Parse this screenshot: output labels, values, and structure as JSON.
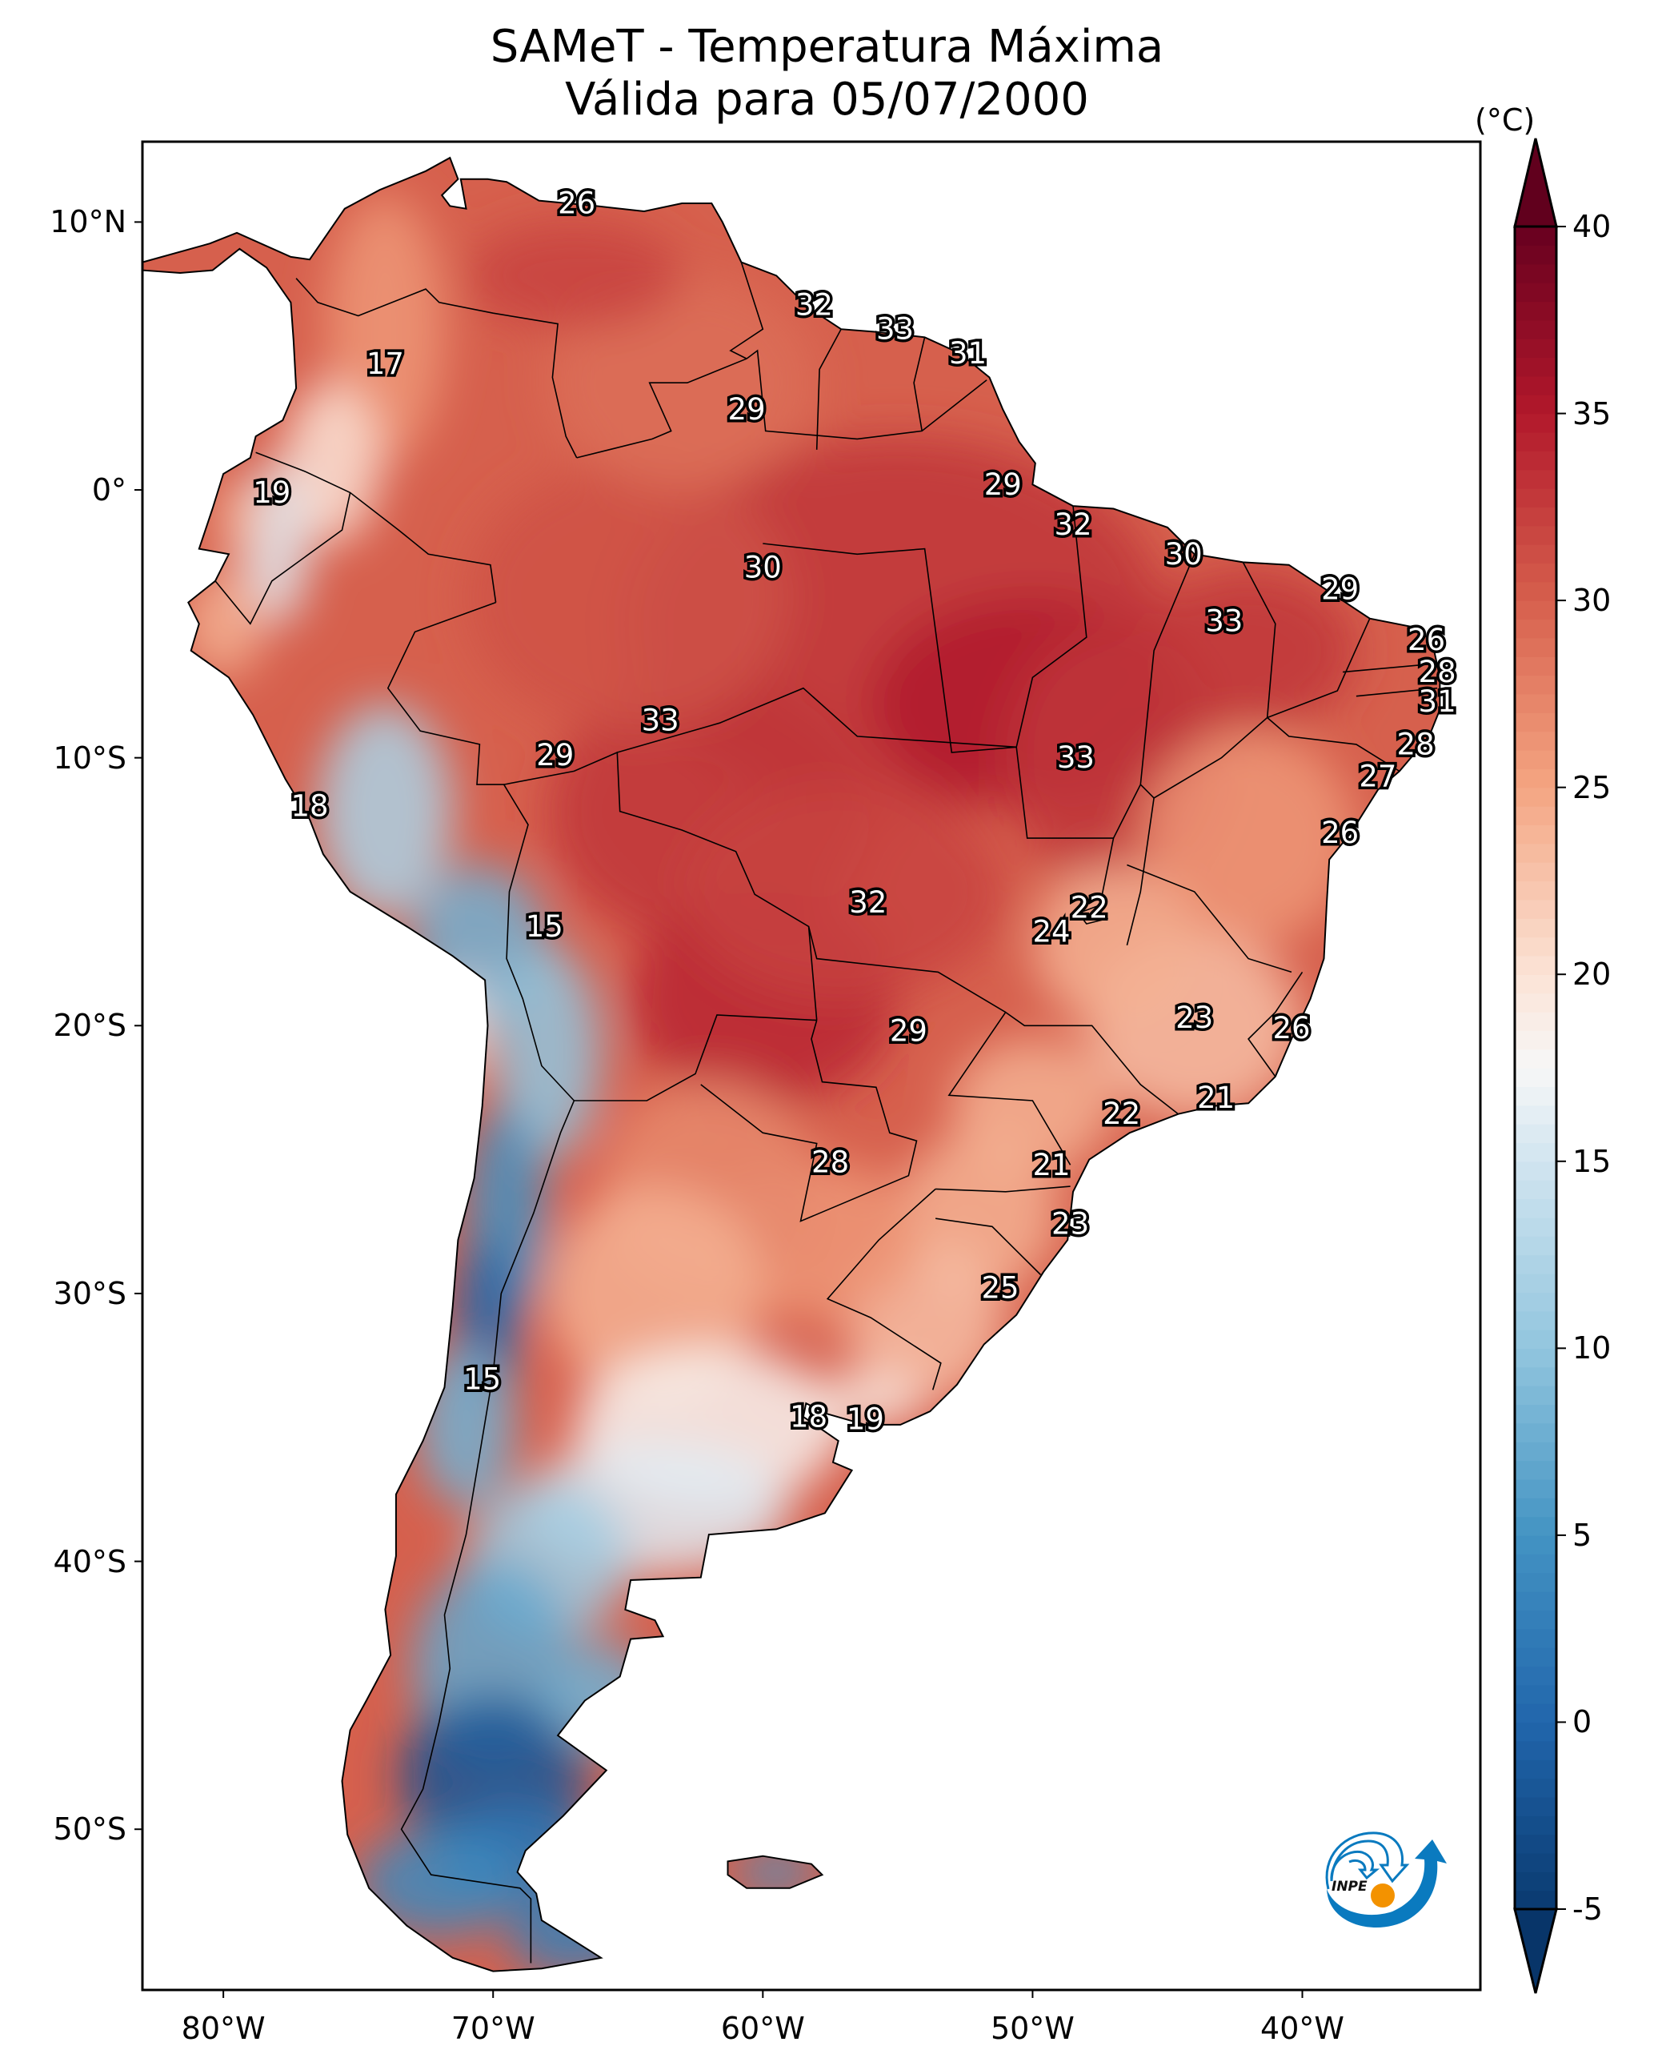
{
  "chart_data": {
    "type": "heatmap",
    "title": "SAMeT - Temperatura Máxima",
    "subtitle": "Válida para 05/07/2000",
    "variable": "Temperatura Máxima",
    "units": "(°C)",
    "region": "South America",
    "xlim": [
      -83,
      -33.4
    ],
    "ylim": [
      -56,
      13
    ],
    "x_ticks": [
      {
        "value": -80,
        "label": "80°W"
      },
      {
        "value": -70,
        "label": "70°W"
      },
      {
        "value": -60,
        "label": "60°W"
      },
      {
        "value": -50,
        "label": "50°W"
      },
      {
        "value": -40,
        "label": "40°W"
      }
    ],
    "y_ticks": [
      {
        "value": 10,
        "label": "10°N"
      },
      {
        "value": 0,
        "label": "0°"
      },
      {
        "value": -10,
        "label": "10°S"
      },
      {
        "value": -20,
        "label": "20°S"
      },
      {
        "value": -30,
        "label": "30°S"
      },
      {
        "value": -40,
        "label": "40°S"
      },
      {
        "value": -50,
        "label": "50°S"
      }
    ],
    "colorbar": {
      "label": "(°C)",
      "range": [
        -5,
        40
      ],
      "extend": "both",
      "colormap": "RdBu_r",
      "ticks": [
        {
          "value": 40,
          "label": "40"
        },
        {
          "value": 35,
          "label": "35"
        },
        {
          "value": 30,
          "label": "30"
        },
        {
          "value": 25,
          "label": "25"
        },
        {
          "value": 20,
          "label": "20"
        },
        {
          "value": 15,
          "label": "15"
        },
        {
          "value": 10,
          "label": "10"
        },
        {
          "value": 5,
          "label": "5"
        },
        {
          "value": 0,
          "label": "0"
        },
        {
          "value": -5,
          "label": "-5"
        }
      ],
      "stops": [
        {
          "value": -7,
          "color": "#053061"
        },
        {
          "value": -5,
          "color": "#0a3a70"
        },
        {
          "value": 0,
          "color": "#2166ac"
        },
        {
          "value": 5,
          "color": "#4393c3"
        },
        {
          "value": 10,
          "color": "#92c5de"
        },
        {
          "value": 15,
          "color": "#d1e5f0"
        },
        {
          "value": 17.5,
          "color": "#f7f7f7"
        },
        {
          "value": 20,
          "color": "#fbe3d6"
        },
        {
          "value": 25,
          "color": "#f4a582"
        },
        {
          "value": 30,
          "color": "#d6604d"
        },
        {
          "value": 35,
          "color": "#b2182b"
        },
        {
          "value": 40,
          "color": "#67001f"
        },
        {
          "value": 42,
          "color": "#5a001a"
        }
      ]
    },
    "station_labels": [
      {
        "lon": -66.9,
        "lat": 10.7,
        "value": 26
      },
      {
        "lon": -74.0,
        "lat": 4.7,
        "value": 17
      },
      {
        "lon": -78.2,
        "lat": -0.1,
        "value": 19
      },
      {
        "lon": -58.1,
        "lat": 6.9,
        "value": 32
      },
      {
        "lon": -55.1,
        "lat": 6.0,
        "value": 33
      },
      {
        "lon": -52.4,
        "lat": 5.1,
        "value": 31
      },
      {
        "lon": -60.6,
        "lat": 3.0,
        "value": 29
      },
      {
        "lon": -51.1,
        "lat": 0.2,
        "value": 29
      },
      {
        "lon": -48.5,
        "lat": -1.3,
        "value": 32
      },
      {
        "lon": -60.0,
        "lat": -2.9,
        "value": 30
      },
      {
        "lon": -44.4,
        "lat": -2.4,
        "value": 30
      },
      {
        "lon": -38.6,
        "lat": -3.7,
        "value": 29
      },
      {
        "lon": -42.9,
        "lat": -4.9,
        "value": 33
      },
      {
        "lon": -35.4,
        "lat": -5.6,
        "value": 26
      },
      {
        "lon": -35.0,
        "lat": -6.8,
        "value": 28
      },
      {
        "lon": -35.0,
        "lat": -7.9,
        "value": 31
      },
      {
        "lon": -63.8,
        "lat": -8.6,
        "value": 33
      },
      {
        "lon": -48.4,
        "lat": -10.0,
        "value": 33
      },
      {
        "lon": -67.7,
        "lat": -9.9,
        "value": 29
      },
      {
        "lon": -35.8,
        "lat": -9.5,
        "value": 28
      },
      {
        "lon": -37.2,
        "lat": -10.7,
        "value": 27
      },
      {
        "lon": -76.8,
        "lat": -11.8,
        "value": 18
      },
      {
        "lon": -38.6,
        "lat": -12.8,
        "value": 26
      },
      {
        "lon": -56.1,
        "lat": -15.4,
        "value": 32
      },
      {
        "lon": -47.9,
        "lat": -15.6,
        "value": 22
      },
      {
        "lon": -49.3,
        "lat": -16.5,
        "value": 24
      },
      {
        "lon": -68.1,
        "lat": -16.3,
        "value": 15
      },
      {
        "lon": -54.6,
        "lat": -20.2,
        "value": 29
      },
      {
        "lon": -44.0,
        "lat": -19.7,
        "value": 23
      },
      {
        "lon": -40.4,
        "lat": -20.1,
        "value": 26
      },
      {
        "lon": -43.2,
        "lat": -22.7,
        "value": 21
      },
      {
        "lon": -46.7,
        "lat": -23.3,
        "value": 22
      },
      {
        "lon": -57.5,
        "lat": -25.1,
        "value": 28
      },
      {
        "lon": -49.3,
        "lat": -25.2,
        "value": 21
      },
      {
        "lon": -48.6,
        "lat": -27.4,
        "value": 23
      },
      {
        "lon": -51.2,
        "lat": -29.8,
        "value": 25
      },
      {
        "lon": -70.4,
        "lat": -33.2,
        "value": 15
      },
      {
        "lon": -58.3,
        "lat": -34.6,
        "value": 18
      },
      {
        "lon": -56.2,
        "lat": -34.7,
        "value": 19
      }
    ],
    "temperature_field_regions": [
      {
        "name": "Amazon / central Brazil",
        "approx_value": 33
      },
      {
        "name": "Northern coast (Venezuela/Guianas)",
        "approx_value": 30
      },
      {
        "name": "Southeast Brazil",
        "approx_value": 22
      },
      {
        "name": "Southern Brazil / Uruguay",
        "approx_value": 22
      },
      {
        "name": "Central Argentina (Pampas)",
        "approx_value": 18
      },
      {
        "name": "Andes (Peru/Bolivia)",
        "approx_value": 10
      },
      {
        "name": "Central Andes (Chile/Argentina)",
        "approx_value": 0
      },
      {
        "name": "Patagonia",
        "approx_value": 3
      }
    ]
  },
  "logo": {
    "text": "INPE",
    "name": "inpe-logo"
  },
  "colors": {
    "border": "#000000",
    "logo_blue": "#0a7abf",
    "logo_orange": "#f39200"
  }
}
